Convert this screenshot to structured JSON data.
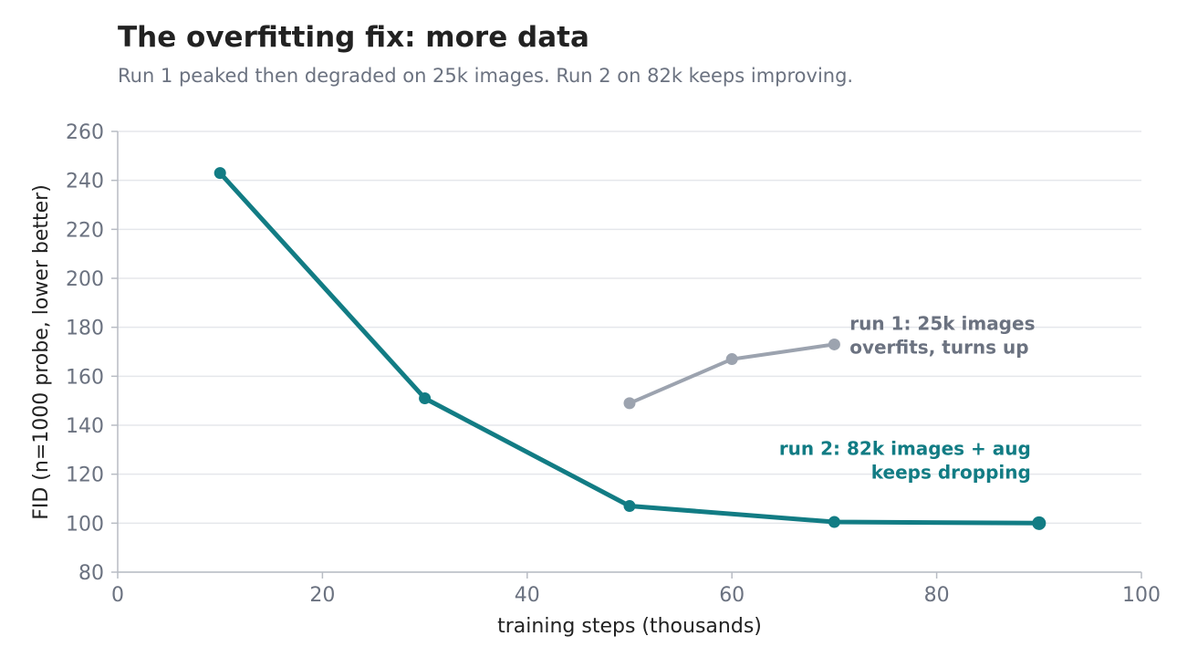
{
  "chart_data": {
    "type": "line",
    "title": "The overfitting fix: more data",
    "subtitle": "Run 1 peaked then degraded on 25k images. Run 2 on 82k keeps improving.",
    "xlabel": "training steps (thousands)",
    "ylabel": "FID (n=1000 probe, lower better)",
    "xlim": [
      0,
      100
    ],
    "ylim": [
      80,
      260
    ],
    "x_ticks": [
      "0",
      "20",
      "40",
      "60",
      "80",
      "100"
    ],
    "y_ticks": [
      "80",
      "100",
      "120",
      "140",
      "160",
      "180",
      "200",
      "220",
      "240",
      "260"
    ],
    "grid": "horizontal",
    "legend": "none",
    "series": [
      {
        "key": "run1",
        "color": "#9ca3af",
        "points": [
          [
            50,
            149
          ],
          [
            60,
            167
          ],
          [
            70,
            173
          ]
        ]
      },
      {
        "key": "run2",
        "color": "#127c84",
        "points": [
          [
            10,
            243
          ],
          [
            30,
            151
          ],
          [
            50,
            107
          ],
          [
            70,
            100.5
          ],
          [
            90,
            100
          ]
        ]
      }
    ],
    "annotations": [
      {
        "series": "run1",
        "lines": [
          "run 1: 25k images",
          "overfits, turns up"
        ],
        "color": "#6b7280",
        "anchor": "start",
        "x": 71.5,
        "y": 173
      },
      {
        "series": "run2",
        "lines": [
          "run 2: 82k images + aug",
          "keeps dropping"
        ],
        "color": "#127c84",
        "anchor": "end",
        "x": 89.2,
        "y": 122
      }
    ]
  }
}
